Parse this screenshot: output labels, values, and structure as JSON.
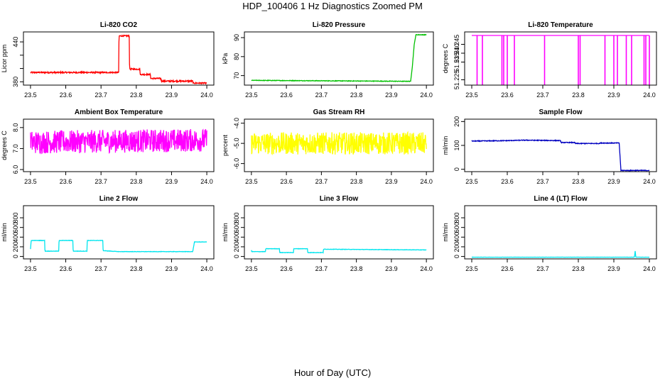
{
  "title": "HDP_100406  1 Hz Diagnostics Zoomed PM",
  "xlabel": "Hour of Day (UTC)",
  "chart_data": [
    {
      "type": "line",
      "title": "Li-820 CO2",
      "ylabel": "Licor ppm",
      "xlim": [
        23.5,
        24.0
      ],
      "ylim": [
        375,
        455
      ],
      "xticks": [
        "23.5",
        "23.6",
        "23.7",
        "23.8",
        "23.9",
        "24.0"
      ],
      "yticks": [
        380,
        400,
        420,
        440
      ],
      "ytick_labels": [
        "380",
        "",
        "",
        "440"
      ],
      "color": "#ff0000",
      "noise": 1,
      "series": [
        {
          "x": [
            23.5,
            23.75,
            23.751,
            23.78,
            23.781,
            23.81,
            23.811,
            23.84,
            23.841,
            23.87,
            23.871,
            23.96,
            23.961,
            24.0
          ],
          "values": [
            394,
            394,
            449,
            449,
            399,
            399,
            391,
            391,
            385,
            385,
            381,
            381,
            378,
            378
          ]
        }
      ]
    },
    {
      "type": "line",
      "title": "Li-820 Pressure",
      "ylabel": "kPa",
      "xlim": [
        23.5,
        24.0
      ],
      "ylim": [
        65,
        93
      ],
      "xticks": [
        "23.5",
        "23.6",
        "23.7",
        "23.8",
        "23.9",
        "24.0"
      ],
      "yticks": [
        70,
        80,
        90
      ],
      "ytick_labels": [
        "70",
        "80",
        "90"
      ],
      "color": "#00c000",
      "noise": 0.15,
      "series": [
        {
          "x": [
            23.5,
            23.95,
            23.955,
            23.96,
            23.965,
            23.97,
            24.0
          ],
          "values": [
            67.5,
            67,
            67,
            75,
            86,
            91.5,
            91.5
          ]
        }
      ]
    },
    {
      "type": "line",
      "title": "Li-820 Temperature",
      "ylabel": "degrees C",
      "xlim": [
        23.5,
        24.0
      ],
      "ylim": [
        51.222,
        51.252
      ],
      "xticks": [
        "23.5",
        "23.6",
        "23.7",
        "23.8",
        "23.9",
        "24.0"
      ],
      "yticks": [
        51.225,
        51.235,
        51.24,
        51.245
      ],
      "ytick_labels": [
        "51.225",
        "51.235",
        "51.240",
        "51.245"
      ],
      "color": "#ff00ff",
      "noise": 0,
      "series": [
        {
          "x": [
            23.5,
            24.0
          ],
          "values": [
            51.25,
            51.25
          ]
        }
      ],
      "spikes": [
        23.515,
        23.53,
        23.585,
        23.59,
        23.6,
        23.62,
        23.705,
        23.8,
        23.805,
        23.875,
        23.9,
        23.91,
        23.935,
        23.95,
        23.985,
        23.99,
        24.0
      ],
      "spike_low": 51.222
    },
    {
      "type": "line",
      "title": "Ambient Box Temperature",
      "ylabel": "degrees C",
      "xlim": [
        23.5,
        24.0
      ],
      "ylim": [
        5.9,
        8.4
      ],
      "xticks": [
        "23.5",
        "23.6",
        "23.7",
        "23.8",
        "23.9",
        "24.0"
      ],
      "yticks": [
        6.0,
        7.0,
        8.0
      ],
      "ytick_labels": [
        "6.0",
        "7.0",
        "8.0"
      ],
      "color": "#ff00ff",
      "noise": 0.55,
      "series": [
        {
          "x": [
            23.5,
            24.0
          ],
          "values": [
            7.3,
            7.4
          ]
        }
      ]
    },
    {
      "type": "line",
      "title": "Gas Stream RH",
      "ylabel": "percent",
      "xlim": [
        23.5,
        24.0
      ],
      "ylim": [
        -6.4,
        -3.8
      ],
      "xticks": [
        "23.5",
        "23.6",
        "23.7",
        "23.8",
        "23.9",
        "24.0"
      ],
      "yticks": [
        -6.0,
        -5.0,
        -4.0
      ],
      "ytick_labels": [
        "-6.0",
        "-5.0",
        "-4.0"
      ],
      "color": "#ffff00",
      "noise": 0.55,
      "series": [
        {
          "x": [
            23.5,
            24.0
          ],
          "values": [
            -5.0,
            -5.0
          ]
        }
      ]
    },
    {
      "type": "line",
      "title": "Sample Flow",
      "ylabel": "ml/min",
      "xlim": [
        23.5,
        24.0
      ],
      "ylim": [
        -10,
        210
      ],
      "xticks": [
        "23.5",
        "23.6",
        "23.7",
        "23.8",
        "23.9",
        "24.0"
      ],
      "yticks": [
        0,
        100,
        200
      ],
      "ytick_labels": [
        "0",
        "100",
        "200"
      ],
      "color": "#0000c0",
      "noise": 1.5,
      "series": [
        {
          "x": [
            23.5,
            23.6,
            23.65,
            23.75,
            23.751,
            23.79,
            23.791,
            23.86,
            23.861,
            23.915,
            23.92,
            24.0
          ],
          "values": [
            118,
            120,
            122,
            120,
            112,
            112,
            108,
            108,
            110,
            110,
            -5,
            -5
          ]
        }
      ]
    },
    {
      "type": "line",
      "title": "Line 2 Flow",
      "ylabel": "ml/min",
      "xlim": [
        23.5,
        24.0
      ],
      "ylim": [
        -50,
        1050
      ],
      "xticks": [
        "23.5",
        "23.6",
        "23.7",
        "23.8",
        "23.9",
        "24.0"
      ],
      "yticks": [
        0,
        200,
        400,
        600,
        800
      ],
      "ytick_labels": [
        "0",
        "200",
        "400",
        "600",
        "800"
      ],
      "color": "#00e5ee",
      "noise": 4,
      "series": [
        {
          "x": [
            23.5,
            23.502,
            23.54,
            23.541,
            23.58,
            23.581,
            23.62,
            23.621,
            23.66,
            23.661,
            23.705,
            23.706,
            23.75,
            23.96,
            23.965,
            24.0
          ],
          "values": [
            150,
            330,
            330,
            110,
            110,
            330,
            330,
            110,
            110,
            330,
            330,
            120,
            100,
            100,
            300,
            300
          ]
        }
      ]
    },
    {
      "type": "line",
      "title": "Line 3 Flow",
      "ylabel": "ml/min",
      "xlim": [
        23.5,
        24.0
      ],
      "ylim": [
        -50,
        1050
      ],
      "xticks": [
        "23.5",
        "23.6",
        "23.7",
        "23.8",
        "23.9",
        "24.0"
      ],
      "yticks": [
        0,
        200,
        400,
        600,
        800
      ],
      "ytick_labels": [
        "0",
        "200",
        "400",
        "600",
        "800"
      ],
      "color": "#00e5ee",
      "noise": 4,
      "series": [
        {
          "x": [
            23.5,
            23.501,
            23.54,
            23.541,
            23.58,
            23.581,
            23.62,
            23.621,
            23.66,
            23.661,
            23.705,
            23.706,
            24.0
          ],
          "values": [
            130,
            100,
            100,
            160,
            160,
            80,
            80,
            160,
            160,
            80,
            80,
            150,
            135
          ]
        }
      ]
    },
    {
      "type": "line",
      "title": "Line 4 (LT) Flow",
      "ylabel": "ml/min",
      "xlim": [
        23.5,
        24.0
      ],
      "ylim": [
        -50,
        1050
      ],
      "xticks": [
        "23.5",
        "23.6",
        "23.7",
        "23.8",
        "23.9",
        "24.0"
      ],
      "yticks": [
        0,
        200,
        400,
        600,
        800
      ],
      "ytick_labels": [
        "0",
        "200",
        "400",
        "600",
        "800"
      ],
      "color": "#00e5ee",
      "noise": 2,
      "series": [
        {
          "x": [
            23.5,
            23.958,
            23.96,
            23.962,
            23.965,
            24.0
          ],
          "values": [
            -15,
            -15,
            110,
            -15,
            -15,
            -15
          ]
        }
      ]
    }
  ]
}
